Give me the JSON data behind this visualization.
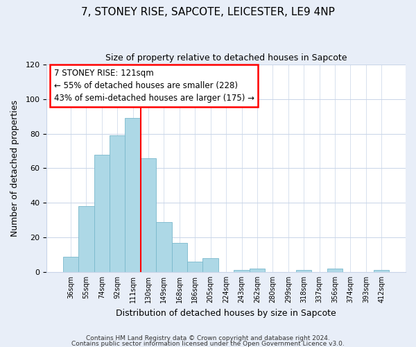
{
  "title": "7, STONEY RISE, SAPCOTE, LEICESTER, LE9 4NP",
  "subtitle": "Size of property relative to detached houses in Sapcote",
  "xlabel": "Distribution of detached houses by size in Sapcote",
  "ylabel": "Number of detached properties",
  "bar_labels": [
    "36sqm",
    "55sqm",
    "74sqm",
    "92sqm",
    "111sqm",
    "130sqm",
    "149sqm",
    "168sqm",
    "186sqm",
    "205sqm",
    "224sqm",
    "243sqm",
    "262sqm",
    "280sqm",
    "299sqm",
    "318sqm",
    "337sqm",
    "356sqm",
    "374sqm",
    "393sqm",
    "412sqm"
  ],
  "bar_heights": [
    9,
    38,
    68,
    79,
    89,
    66,
    29,
    17,
    6,
    8,
    0,
    1,
    2,
    0,
    0,
    1,
    0,
    2,
    0,
    0,
    1
  ],
  "bar_color": "#add8e6",
  "bar_edge_color": "#7ab8cc",
  "ylim": [
    0,
    120
  ],
  "yticks": [
    0,
    20,
    40,
    60,
    80,
    100,
    120
  ],
  "vline_color": "red",
  "annotation_title": "7 STONEY RISE: 121sqm",
  "annotation_line1": "← 55% of detached houses are smaller (228)",
  "annotation_line2": "43% of semi-detached houses are larger (175) →",
  "annotation_box_color": "white",
  "annotation_box_edge": "red",
  "footer1": "Contains HM Land Registry data © Crown copyright and database right 2024.",
  "footer2": "Contains public sector information licensed under the Open Government Licence v3.0.",
  "background_color": "#e8eef8",
  "plot_background_color": "#ffffff"
}
